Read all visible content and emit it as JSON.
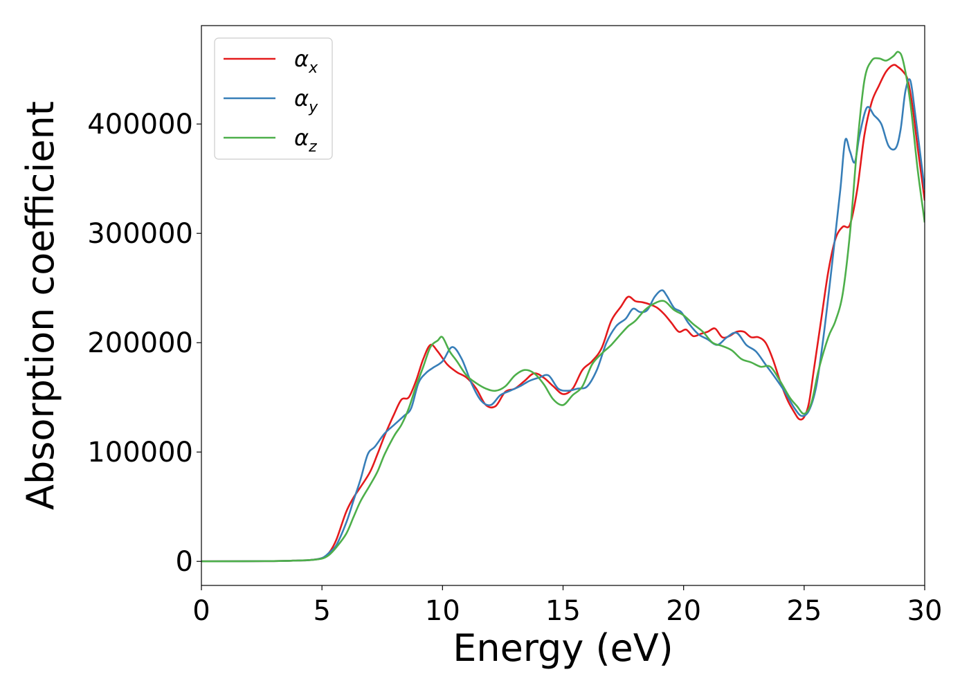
{
  "chart_data": {
    "type": "line",
    "xlabel": "Energy (eV)",
    "ylabel": "Absorption coefficient",
    "xlim": [
      0,
      30
    ],
    "ylim": [
      -22000,
      490000
    ],
    "xticks": [
      0,
      5,
      10,
      15,
      20,
      25,
      30
    ],
    "yticks": [
      0,
      100000,
      200000,
      300000,
      400000
    ],
    "grid": false,
    "legend_position": "top-left",
    "series": [
      {
        "name": "αx",
        "base": "α",
        "sub": "x",
        "color": "#e41a1c",
        "x": [
          0,
          3,
          4,
          4.5,
          5,
          5.3,
          5.6,
          6,
          6.3,
          6.6,
          7,
          7.3,
          7.6,
          8,
          8.3,
          8.6,
          8.9,
          9.2,
          9.5,
          9.8,
          10.2,
          10.6,
          11,
          11.4,
          11.8,
          12.2,
          12.6,
          13,
          13.4,
          13.8,
          14.2,
          14.6,
          15,
          15.4,
          15.8,
          16.2,
          16.6,
          17,
          17.4,
          17.7,
          18,
          18.3,
          18.6,
          18.9,
          19.2,
          19.5,
          19.8,
          20.1,
          20.4,
          20.7,
          21,
          21.3,
          21.6,
          21.9,
          22.2,
          22.5,
          22.8,
          23.1,
          23.4,
          23.7,
          24,
          24.3,
          24.6,
          24.8,
          25,
          25.2,
          25.4,
          25.7,
          26,
          26.3,
          26.6,
          26.9,
          27.2,
          27.5,
          27.8,
          28.1,
          28.4,
          28.7,
          28.9,
          29.1,
          29.3,
          29.5,
          29.7,
          30
        ],
        "y": [
          0,
          300,
          800,
          1200,
          3000,
          8000,
          20000,
          45000,
          58000,
          68000,
          82000,
          98000,
          115000,
          135000,
          148000,
          150000,
          165000,
          185000,
          198000,
          192000,
          180000,
          173000,
          168000,
          158000,
          143000,
          142000,
          155000,
          158000,
          165000,
          172000,
          168000,
          160000,
          153000,
          158000,
          175000,
          183000,
          195000,
          220000,
          233000,
          242000,
          238000,
          237000,
          235000,
          232000,
          226000,
          218000,
          210000,
          212000,
          206000,
          208000,
          210000,
          213000,
          205000,
          206000,
          210000,
          210000,
          205000,
          205000,
          200000,
          185000,
          165000,
          148000,
          136000,
          130000,
          132000,
          145000,
          175000,
          220000,
          265000,
          295000,
          306000,
          308000,
          340000,
          390000,
          420000,
          435000,
          448000,
          454000,
          452000,
          448000,
          440000,
          415000,
          380000,
          330000
        ]
      },
      {
        "name": "αy",
        "base": "α",
        "sub": "y",
        "color": "#377eb8",
        "x": [
          0,
          3,
          4,
          4.5,
          5,
          5.3,
          5.6,
          6,
          6.3,
          6.6,
          6.9,
          7.2,
          7.6,
          8,
          8.4,
          8.7,
          9,
          9.3,
          9.6,
          10,
          10.4,
          10.8,
          11.2,
          11.6,
          12,
          12.4,
          12.8,
          13.2,
          13.6,
          14,
          14.4,
          14.8,
          15.2,
          15.6,
          16,
          16.4,
          16.8,
          17.2,
          17.6,
          17.9,
          18.2,
          18.5,
          18.8,
          19.1,
          19.3,
          19.6,
          19.9,
          20.2,
          20.6,
          21,
          21.4,
          21.8,
          22.2,
          22.6,
          23,
          23.4,
          23.8,
          24.2,
          24.6,
          24.9,
          25.2,
          25.5,
          25.8,
          26.2,
          26.5,
          26.7,
          26.9,
          27.1,
          27.3,
          27.6,
          27.9,
          28.2,
          28.5,
          28.8,
          29,
          29.2,
          29.4,
          29.6,
          30
        ],
        "y": [
          0,
          300,
          800,
          1200,
          3000,
          8000,
          15000,
          35000,
          55000,
          75000,
          98000,
          105000,
          117000,
          125000,
          133000,
          140000,
          163000,
          172000,
          177000,
          183000,
          196000,
          185000,
          163000,
          147000,
          143000,
          152000,
          156000,
          160000,
          165000,
          168000,
          170000,
          158000,
          156000,
          158000,
          160000,
          175000,
          200000,
          215000,
          222000,
          231000,
          228000,
          230000,
          242000,
          248000,
          243000,
          232000,
          228000,
          218000,
          208000,
          203000,
          198000,
          205000,
          209000,
          198000,
          192000,
          180000,
          168000,
          155000,
          140000,
          133000,
          138000,
          160000,
          205000,
          280000,
          340000,
          385000,
          375000,
          365000,
          390000,
          415000,
          408000,
          400000,
          380000,
          378000,
          395000,
          430000,
          440000,
          410000,
          340000
        ]
      },
      {
        "name": "αz",
        "base": "α",
        "sub": "z",
        "color": "#4daf4a",
        "x": [
          0,
          3,
          4,
          4.5,
          5,
          5.3,
          5.6,
          6,
          6.3,
          6.6,
          7,
          7.3,
          7.6,
          8,
          8.3,
          8.6,
          8.9,
          9.2,
          9.5,
          9.8,
          10,
          10.3,
          10.6,
          11,
          11.4,
          11.8,
          12.2,
          12.6,
          13,
          13.4,
          13.8,
          14.2,
          14.6,
          15,
          15.4,
          15.8,
          16.2,
          16.6,
          17,
          17.4,
          17.7,
          18,
          18.4,
          18.8,
          19.2,
          19.6,
          20,
          20.4,
          20.8,
          21.2,
          21.6,
          22,
          22.4,
          22.8,
          23.2,
          23.6,
          24,
          24.4,
          24.7,
          25,
          25.3,
          25.6,
          26,
          26.3,
          26.6,
          26.9,
          27.2,
          27.5,
          27.8,
          28.1,
          28.4,
          28.7,
          28.9,
          29.1,
          29.4,
          29.7,
          30
        ],
        "y": [
          0,
          300,
          800,
          1200,
          2500,
          6000,
          13000,
          25000,
          40000,
          55000,
          70000,
          82000,
          98000,
          115000,
          125000,
          140000,
          160000,
          178000,
          196000,
          202000,
          205000,
          192000,
          183000,
          170000,
          163000,
          158000,
          156000,
          160000,
          170000,
          175000,
          172000,
          162000,
          148000,
          143000,
          152000,
          160000,
          180000,
          190000,
          198000,
          208000,
          215000,
          220000,
          230000,
          236000,
          238000,
          230000,
          225000,
          217000,
          210000,
          200000,
          197000,
          193000,
          185000,
          182000,
          178000,
          178000,
          165000,
          150000,
          142000,
          135000,
          145000,
          175000,
          205000,
          220000,
          245000,
          300000,
          380000,
          440000,
          458000,
          460000,
          458000,
          462000,
          466000,
          458000,
          420000,
          360000,
          310000
        ]
      }
    ]
  }
}
